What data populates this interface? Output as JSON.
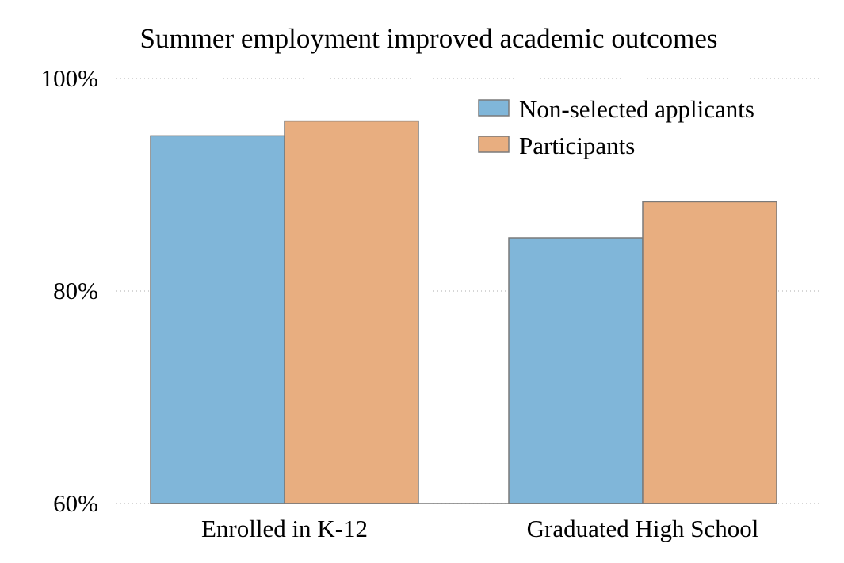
{
  "chart_data": {
    "type": "bar",
    "title": "Summer employment improved academic outcomes",
    "categories": [
      "Enrolled in K-12",
      "Graduated High School"
    ],
    "series": [
      {
        "name": "Non-selected applicants",
        "values": [
          94.6,
          85.0
        ],
        "color": "#80b6d9"
      },
      {
        "name": "Participants",
        "values": [
          96.0,
          88.4
        ],
        "color": "#e8ae80"
      }
    ],
    "ylim": [
      60,
      100
    ],
    "yticks": [
      60,
      80,
      100
    ],
    "ytick_labels": [
      "60%",
      "80%",
      "100%"
    ],
    "xlabel": "",
    "ylabel": "",
    "grid": "horizontal dotted",
    "legend_position": "top-right"
  }
}
